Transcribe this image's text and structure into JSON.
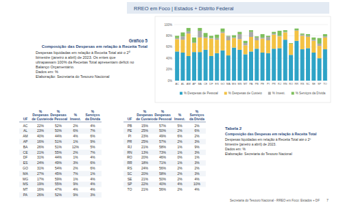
{
  "header": {
    "title": "RREO em Foco | Estados + Distrito Federal"
  },
  "chart_text": {
    "label": "Gráfico 5",
    "title": "Composição das Despesas em relação à Receita Total",
    "lines": [
      "Despesas liquidadas em relação à Receita Total até o 2º",
      "bimestre (janeiro a abril) de 2023. Os entes que",
      "ultrapassam 100% da Receitas Total apresentam déficit no",
      "Balanço Orçamentário.",
      "Dados em: %",
      "Elaboração: Secretaria do Tesouro Nacional"
    ]
  },
  "chart_data": {
    "type": "bar",
    "stacked": true,
    "grid": true,
    "legend": "bottom",
    "categories": [
      "AC",
      "AL",
      "AM",
      "AP",
      "BA",
      "CE",
      "DF",
      "ES",
      "GO",
      "MA",
      "MG",
      "MS",
      "MT",
      "PA",
      "PB",
      "PE",
      "PI",
      "PR",
      "RJ",
      "RN",
      "RO",
      "RR",
      "RS",
      "SC",
      "SE",
      "SP",
      "TO"
    ],
    "series": [
      {
        "name": "% Despesas de Pessoal",
        "color": "#2ea3c6",
        "values": [
          52,
          50,
          44,
          51,
          51,
          55,
          44,
          49,
          54,
          45,
          59,
          55,
          47,
          52,
          57,
          50,
          49,
          57,
          58,
          73,
          46,
          71,
          56,
          58,
          50,
          40,
          56
        ]
      },
      {
        "name": "% Despesas de Custeio",
        "color": "#f3c244",
        "values": [
          22,
          23,
          40,
          16,
          26,
          21,
          31,
          24,
          31,
          27,
          17,
          19,
          16,
          26,
          15,
          25,
          23,
          25,
          21,
          13,
          20,
          18,
          24,
          20,
          21,
          22,
          21
        ]
      },
      {
        "name": "% Invest.",
        "color": "#a9a9a9",
        "values": [
          2,
          6,
          4,
          1,
          12,
          2,
          1,
          3,
          2,
          7,
          1,
          9,
          4,
          9,
          5,
          2,
          6,
          2,
          1,
          1,
          0,
          1,
          2,
          2,
          2,
          4,
          2
        ]
      },
      {
        "name": "% Serviços da Dívida",
        "color": "#7dbf5b",
        "values": [
          4,
          7,
          6,
          9,
          5,
          7,
          4,
          6,
          6,
          1,
          4,
          4,
          4,
          3,
          2,
          6,
          2,
          3,
          9,
          3,
          1,
          3,
          2,
          3,
          4,
          10,
          4
        ]
      }
    ],
    "ylim": [
      0,
      100
    ],
    "yticks": [
      {
        "value": 0,
        "label": "0%"
      },
      {
        "value": 20,
        "label": "20%"
      },
      {
        "value": 40,
        "label": "40%"
      },
      {
        "value": 60,
        "label": "60%"
      },
      {
        "value": 80,
        "label": "80%"
      },
      {
        "value": 100,
        "label": "100%"
      }
    ]
  },
  "tables": [
    {
      "headers": [
        [
          "UF"
        ],
        [
          "%",
          "Despesas",
          "de Custeio"
        ],
        [
          "%",
          "Despesas",
          "de Pessoal"
        ],
        [
          "%",
          "Invest."
        ],
        [
          "%",
          "Serviços",
          "da Dívida"
        ]
      ],
      "rows": [
        [
          "AC",
          "22%",
          "52%",
          "2%",
          "4%"
        ],
        [
          "AL",
          "23%",
          "50%",
          "6%",
          "7%"
        ],
        [
          "AM",
          "40%",
          "44%",
          "4%",
          "6%"
        ],
        [
          "AP",
          "16%",
          "51%",
          "1%",
          "9%"
        ],
        [
          "BA",
          "26%",
          "51%",
          "12%",
          "5%"
        ],
        [
          "CE",
          "21%",
          "55%",
          "2%",
          "7%"
        ],
        [
          "DF",
          "31%",
          "44%",
          "1%",
          "4%"
        ],
        [
          "ES",
          "24%",
          "49%",
          "3%",
          "6%"
        ],
        [
          "GO",
          "31%",
          "54%",
          "2%",
          "6%"
        ],
        [
          "MA",
          "27%",
          "45%",
          "7%",
          "1%"
        ],
        [
          "MG",
          "17%",
          "59%",
          "1%",
          "4%"
        ],
        [
          "MS",
          "19%",
          "55%",
          "9%",
          "4%"
        ],
        [
          "MT",
          "16%",
          "47%",
          "4%",
          "4%"
        ],
        [
          "PA",
          "26%",
          "52%",
          "9%",
          "3%"
        ]
      ]
    },
    {
      "headers": [
        [
          "UF"
        ],
        [
          "%",
          "Despesas",
          "de Custeio"
        ],
        [
          "%",
          "Despesas",
          "de Pessoal"
        ],
        [
          "%",
          "Invest."
        ],
        [
          "%",
          "Serviços",
          "da Dívida"
        ]
      ],
      "rows": [
        [
          "PB",
          "15%",
          "57%",
          "5%",
          "2%"
        ],
        [
          "PE",
          "25%",
          "50%",
          "2%",
          "6%"
        ],
        [
          "PI",
          "23%",
          "49%",
          "6%",
          "2%"
        ],
        [
          "PR",
          "25%",
          "57%",
          "2%",
          "3%"
        ],
        [
          "RJ",
          "21%",
          "58%",
          "1%",
          "9%"
        ],
        [
          "RN",
          "13%",
          "73%",
          "1%",
          "3%"
        ],
        [
          "RO",
          "20%",
          "46%",
          "0%",
          "1%"
        ],
        [
          "RR",
          "18%",
          "71%",
          "1%",
          "3%"
        ],
        [
          "RS",
          "24%",
          "56%",
          "2%",
          "2%"
        ],
        [
          "SC",
          "20%",
          "58%",
          "2%",
          "3%"
        ],
        [
          "SE",
          "21%",
          "50%",
          "2%",
          "4%"
        ],
        [
          "SP",
          "22%",
          "40%",
          "4%",
          "10%"
        ],
        [
          "TO",
          "21%",
          "56%",
          "2%",
          "4%"
        ]
      ]
    }
  ],
  "table_text": {
    "label": "Tabela 2",
    "title": "Composição das Despesas em relação à Receita Total",
    "lines": [
      "Despesas liquidadas em relação à Receita Total até o 2º",
      "bimestre (janeiro a abril) de 2023.",
      "Dados em: %",
      "Elaboração: Secretaria do Tesouro Nacional"
    ]
  },
  "footer": {
    "text": "Secretaria do Tesouro Nacional - RREO em Foco: Estados + DF",
    "page": "7"
  }
}
